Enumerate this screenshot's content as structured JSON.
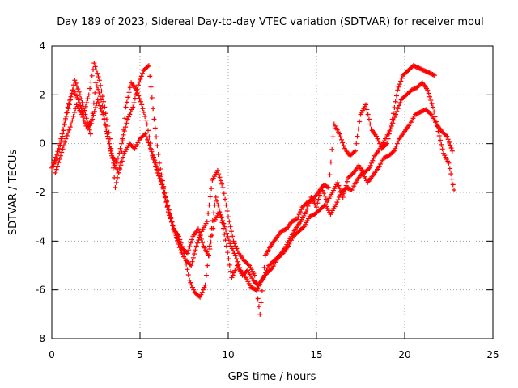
{
  "chart_data": {
    "type": "scatter",
    "title": "Day 189 of 2023, Sidereal Day-to-day VTEC variation (SDTVAR) for receiver moul",
    "xlabel": "GPS time / hours",
    "ylabel": "SDTVAR / TECUs",
    "xlim": [
      0,
      25
    ],
    "ylim": [
      -8,
      4
    ],
    "xticks": [
      "0",
      "5",
      "10",
      "15",
      "20",
      "25"
    ],
    "yticks": [
      "-8",
      "-6",
      "-4",
      "-2",
      "0",
      "2",
      "4"
    ],
    "grid": true,
    "marker": "+",
    "color": "#ff0000",
    "series": [
      {
        "x": [
          0.0,
          0.3,
          0.6,
          0.9,
          1.2,
          1.5,
          1.8,
          2.1,
          2.4,
          2.7,
          3.0,
          3.3,
          3.6,
          3.9,
          4.2,
          4.5,
          4.8,
          5.1,
          5.4,
          5.7,
          6.0,
          6.3,
          6.6,
          6.9,
          7.2,
          7.5,
          7.8,
          8.1,
          8.4,
          8.7,
          9.0,
          9.3,
          9.6,
          9.9,
          10.2,
          10.5,
          10.8,
          11.1,
          11.4,
          11.7,
          12.0,
          12.3,
          12.6,
          12.9,
          13.2,
          13.5,
          13.8,
          14.1,
          14.4,
          14.7,
          15.0,
          15.3,
          15.6,
          15.9,
          16.2,
          16.5,
          16.8,
          17.1,
          17.4,
          17.7,
          18.0,
          18.3,
          18.6,
          18.9,
          19.2,
          19.5,
          19.8,
          20.1,
          20.4,
          20.7,
          21.0,
          21.3,
          21.6,
          21.9,
          22.2,
          22.5,
          22.8
        ],
        "y": [
          -1.0,
          -0.6,
          0.3,
          1.5,
          2.2,
          1.8,
          1.2,
          2.0,
          3.3,
          2.6,
          1.5,
          0.2,
          -1.8,
          -0.8,
          1.5,
          2.5,
          2.2,
          1.6,
          0.8,
          -0.5,
          -1.2,
          -1.8,
          -2.8,
          -3.5,
          -3.8,
          -4.5,
          -5.6,
          -6.1,
          -6.3,
          -5.8,
          -3.8,
          -2.2,
          -3.0,
          -4.2,
          -5.5,
          -5.0,
          -5.4,
          -5.2,
          -5.6,
          -5.8,
          -5.5,
          -5.0,
          -4.8,
          -4.6,
          -4.3,
          -3.9,
          -3.5,
          -3.2,
          -2.8,
          -2.2,
          -2.6,
          -1.8,
          -2.4,
          -2.0,
          -1.6,
          -2.2,
          -1.4,
          -1.2,
          -0.9,
          -1.2,
          -1.0,
          -0.5,
          -0.2,
          0.2,
          0.6,
          1.2,
          1.8,
          2.0,
          2.2,
          2.3,
          2.5,
          2.2,
          1.5,
          0.5,
          -0.4,
          -0.8,
          -1.9
        ]
      },
      {
        "x": [
          0.2,
          0.5,
          0.8,
          1.1,
          1.4,
          1.7,
          2.0,
          2.3,
          2.6,
          2.9,
          3.2,
          3.5,
          3.8,
          4.1,
          4.4,
          4.7,
          5.0,
          5.3,
          5.6,
          5.9,
          6.2,
          6.5,
          6.8,
          7.1,
          7.4,
          7.7,
          8.0,
          8.3,
          8.6,
          8.9,
          9.2,
          9.5,
          9.8,
          10.1,
          10.4,
          10.7,
          11.0,
          11.3,
          11.6,
          11.9,
          12.2,
          12.5,
          12.8,
          13.1,
          13.4,
          13.7,
          14.0,
          14.3,
          14.6,
          14.9,
          15.2,
          15.5,
          15.8,
          16.1,
          16.4,
          16.7,
          17.0,
          17.3,
          17.6,
          17.9,
          18.2,
          18.5,
          18.8,
          19.1,
          19.4,
          19.7,
          20.0,
          20.3,
          20.6,
          20.9,
          21.2,
          21.5,
          21.8,
          22.1,
          22.4,
          22.7
        ],
        "y": [
          -1.2,
          -0.5,
          0.2,
          0.8,
          1.6,
          1.2,
          0.6,
          1.0,
          1.8,
          1.2,
          0.2,
          -0.8,
          -1.2,
          -0.4,
          0.0,
          -0.2,
          0.2,
          0.4,
          -0.2,
          -0.8,
          -1.5,
          -2.4,
          -3.2,
          -3.9,
          -4.3,
          -4.5,
          -3.8,
          -3.5,
          -4.2,
          -4.6,
          -3.2,
          -2.8,
          -3.4,
          -4.1,
          -4.6,
          -5.2,
          -5.5,
          -5.9,
          -6.0,
          -5.6,
          -5.3,
          -5.1,
          -4.7,
          -4.5,
          -4.2,
          -3.8,
          -3.6,
          -3.4,
          -3.0,
          -2.9,
          -2.7,
          -2.5,
          -2.9,
          -2.5,
          -2.0,
          -1.8,
          -1.9,
          -1.5,
          -1.2,
          -1.6,
          -1.3,
          -1.0,
          -0.6,
          -0.5,
          -0.3,
          0.2,
          0.5,
          0.8,
          1.2,
          1.3,
          1.4,
          1.2,
          0.8,
          0.5,
          0.3,
          -0.3
        ]
      },
      {
        "x": [
          0.1,
          0.4,
          0.7,
          1.0,
          1.3,
          1.6,
          1.9,
          2.2,
          2.5,
          2.8,
          3.1,
          3.4,
          3.7,
          4.0,
          4.3,
          4.6,
          4.9,
          5.2,
          5.5,
          5.8,
          6.1,
          6.4,
          6.7,
          7.0,
          7.3,
          7.6,
          7.9,
          8.2,
          8.5,
          8.8,
          9.1,
          9.4,
          9.7,
          10.0,
          10.3,
          10.6,
          10.9,
          11.2,
          11.5,
          11.8,
          12.1,
          12.4,
          12.7,
          13.0,
          13.3,
          13.6,
          13.9,
          14.2,
          14.5,
          14.8,
          15.1,
          15.4,
          15.7,
          16.0,
          16.3,
          16.6,
          16.9,
          17.2,
          17.5,
          17.8,
          18.1,
          18.4,
          18.7,
          19.0,
          19.3,
          19.6,
          19.9,
          20.2,
          20.5,
          20.8,
          21.1,
          21.4,
          21.7
        ],
        "y": [
          -0.8,
          -0.2,
          0.8,
          1.6,
          2.6,
          2.0,
          1.2,
          0.4,
          2.5,
          1.8,
          0.5,
          -0.5,
          -0.8,
          0.2,
          1.0,
          1.5,
          2.4,
          3.0,
          3.2,
          1.0,
          -0.8,
          -2.0,
          -2.9,
          -3.7,
          -4.4,
          -4.8,
          -5.0,
          -4.2,
          -3.6,
          -3.2,
          -1.5,
          -1.1,
          -1.8,
          -3.0,
          -4.0,
          -4.5,
          -4.8,
          -5.0,
          -5.4,
          -7.0,
          -4.6,
          -4.2,
          -3.9,
          -3.6,
          -3.5,
          -3.2,
          -3.1,
          -2.6,
          -2.4,
          -2.3,
          -2.0,
          -1.7,
          -1.8,
          0.8,
          0.4,
          -0.2,
          -0.5,
          -0.3,
          1.2,
          1.6,
          0.6,
          0.3,
          -0.2,
          0.0,
          1.0,
          2.2,
          2.8,
          3.0,
          3.2,
          3.1,
          3.0,
          2.9,
          2.8
        ]
      }
    ]
  }
}
